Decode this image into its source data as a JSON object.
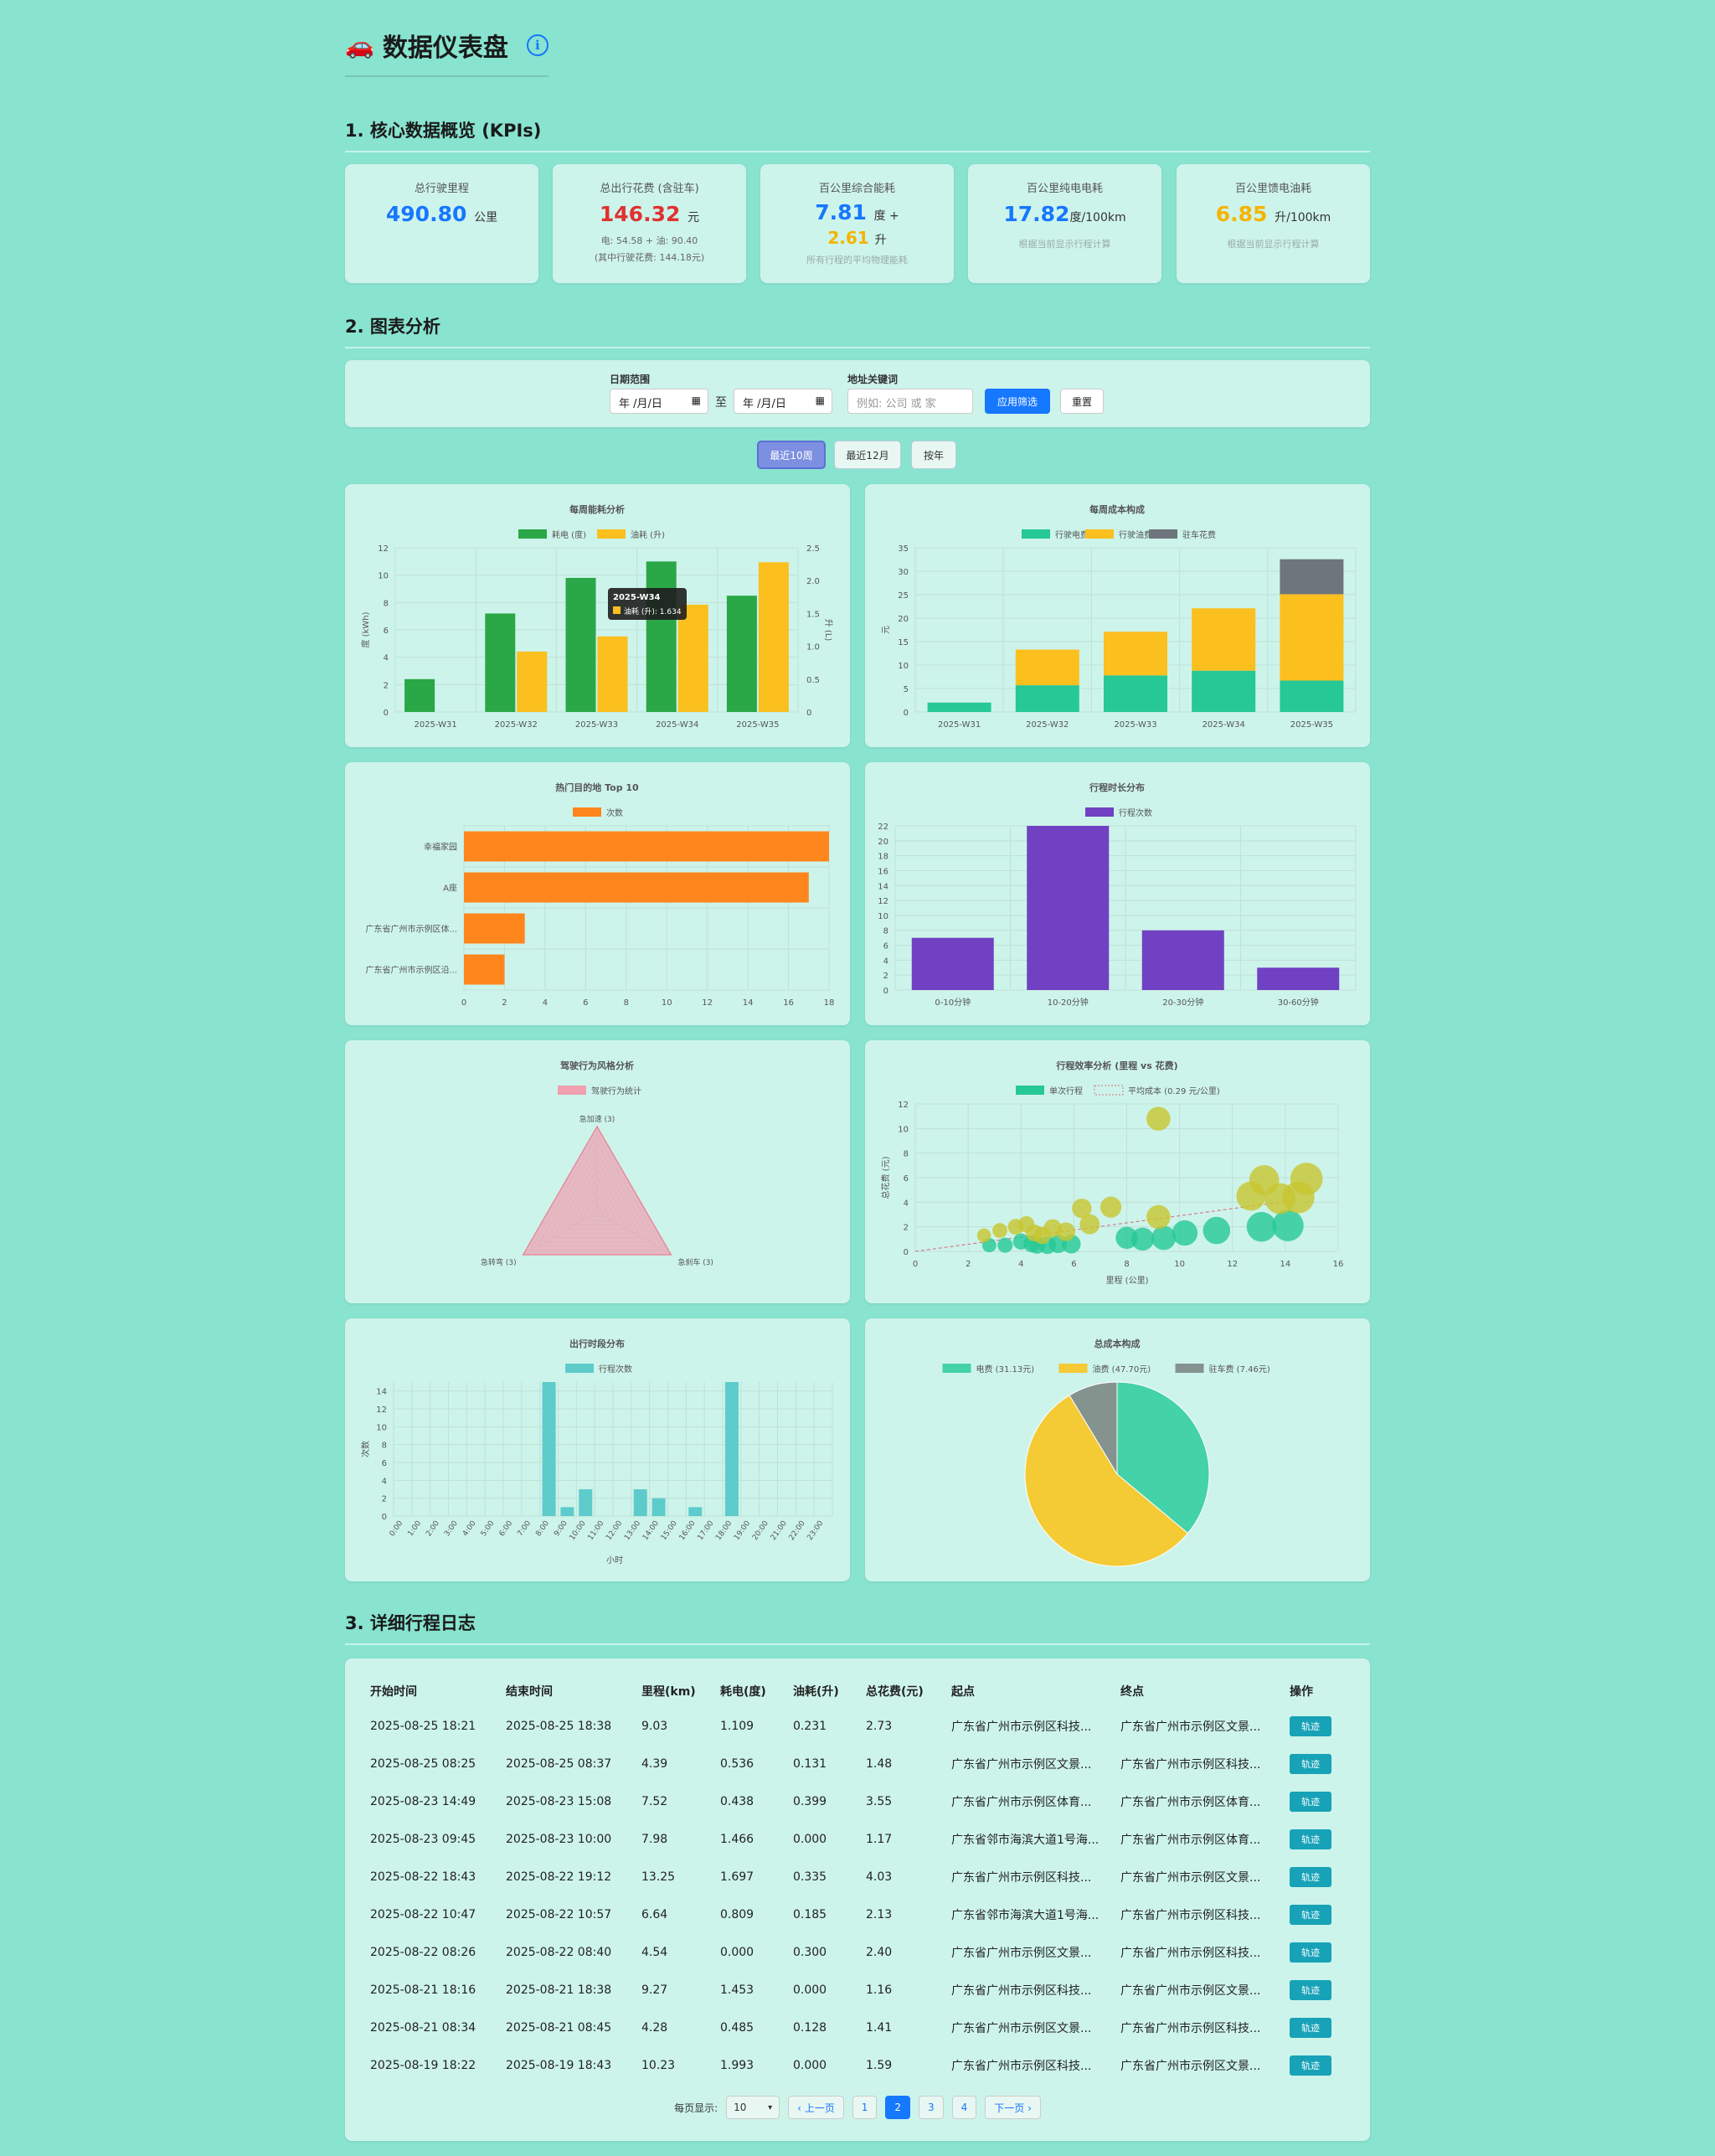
{
  "header": {
    "title": "数据仪表盘",
    "car_icon": "🚗",
    "info_glyph": "i"
  },
  "sections": {
    "kpi": "1. 核心数据概览 (KPIs)",
    "charts": "2. 图表分析",
    "log": "3. 详细行程日志"
  },
  "kpis": [
    {
      "label": "总行驶里程",
      "value": "490.80",
      "unit": "公里",
      "color": "#1677ff"
    },
    {
      "label": "总出行花费 (含驻车)",
      "value": "146.32",
      "unit": "元",
      "sub1": "电: 54.58 + 油: 90.40",
      "sub2": "(其中行驶花费: 144.18元)",
      "color": "#e03131"
    },
    {
      "label": "百公里综合能耗",
      "value": "7.81",
      "unit": "度 +",
      "value2": "2.61",
      "unit2": "升",
      "note": "所有行程的平均物理能耗",
      "color": "#1677ff"
    },
    {
      "label": "百公里纯电电耗",
      "value": "17.82",
      "unit": "度/100km",
      "note": "根据当前显示行程计算",
      "color": "#1677ff"
    },
    {
      "label": "百公里馈电油耗",
      "value": "6.85",
      "unit": "升/100km",
      "note": "根据当前显示行程计算",
      "color": "#f5b400"
    }
  ],
  "filter": {
    "date_label": "日期范围",
    "date_placeholder": "年 /月/日",
    "to": "至",
    "kw_label": "地址关键词",
    "kw_placeholder": "例如: 公司 或 家",
    "apply": "应用筛选",
    "reset": "重置"
  },
  "ranges": [
    "最近10周",
    "最近12月",
    "按年"
  ],
  "charts": {
    "weekly_energy": {
      "title": "每周能耗分析",
      "legend": [
        "耗电 (度)",
        "油耗 (升)"
      ],
      "categories": [
        "2025-W31",
        "2025-W32",
        "2025-W33",
        "2025-W34",
        "2025-W35"
      ],
      "electric": [
        2.4,
        7.2,
        9.8,
        11.0,
        8.5
      ],
      "fuel": [
        0,
        0.92,
        1.15,
        1.634,
        2.28
      ],
      "ylabel_left": "度 (kWh)",
      "ylabel_right": "升 (L)",
      "left_ticks": [
        "0",
        "2",
        "4",
        "6",
        "8",
        "10",
        "12"
      ],
      "right_ticks": [
        "0",
        "0.5",
        "1.0",
        "1.5",
        "2.0",
        "2.5"
      ],
      "tooltip_title": "2025-W34",
      "tooltip_text": "油耗 (升): 1.634",
      "colors": [
        "#2aa746",
        "#fbbf1e"
      ]
    },
    "weekly_cost": {
      "title": "每周成本构成",
      "legend": [
        "行驶电费",
        "行驶油费",
        "驻车花费"
      ],
      "categories": [
        "2025-W31",
        "2025-W32",
        "2025-W33",
        "2025-W34",
        "2025-W35"
      ],
      "electric": [
        2,
        5.7,
        7.8,
        8.8,
        6.7
      ],
      "fuel": [
        0,
        7.6,
        9.3,
        13.3,
        18.4
      ],
      "parking": [
        0,
        0,
        0,
        0,
        7.46
      ],
      "ylabel": "元",
      "ticks": [
        "0",
        "5",
        "10",
        "15",
        "20",
        "25",
        "30",
        "35"
      ],
      "colors": [
        "#26c896",
        "#fbbf1e",
        "#6e757c"
      ]
    },
    "top_dest": {
      "title": "热门目的地 Top 10",
      "legend": [
        "次数"
      ],
      "categories": [
        "幸福家园",
        "A座",
        "广东省广州市示例区体...",
        "广东省广州市示例区沿..."
      ],
      "values": [
        18,
        17,
        3,
        2
      ],
      "ticks": [
        "0",
        "2",
        "4",
        "6",
        "8",
        "10",
        "12",
        "14",
        "16",
        "18"
      ],
      "color": "#ff861c"
    },
    "duration": {
      "title": "行程时长分布",
      "legend": [
        "行程次数"
      ],
      "categories": [
        "0-10分钟",
        "10-20分钟",
        "20-30分钟",
        "30-60分钟"
      ],
      "values": [
        7,
        22,
        8,
        3
      ],
      "ticks": [
        "0",
        "2",
        "4",
        "6",
        "8",
        "10",
        "12",
        "14",
        "16",
        "18",
        "20",
        "22"
      ],
      "color": "#7041c2"
    },
    "radar": {
      "title": "驾驶行为风格分析",
      "legend": [
        "驾驶行为统计"
      ],
      "axes": [
        "急加速 (3)",
        "急刹车 (3)",
        "急转弯 (3)"
      ],
      "values": [
        3,
        3,
        3
      ],
      "color": "#f0a0b0"
    },
    "scatter": {
      "title": "行程效率分析 (里程 vs 花费)",
      "legend": [
        "单次行程",
        "平均成本 (0.29 元/公里)"
      ],
      "xlabel": "里程 (公里)",
      "ylabel": "总花费 (元)",
      "xticks": [
        "0",
        "2",
        "4",
        "6",
        "8",
        "10",
        "12",
        "14",
        "16"
      ],
      "yticks": [
        "0",
        "2",
        "4",
        "6",
        "8",
        "10",
        "12"
      ],
      "points": [
        [
          2.8,
          0.5
        ],
        [
          3.4,
          0.5
        ],
        [
          4.0,
          0.8
        ],
        [
          4.4,
          0.6
        ],
        [
          4.6,
          0.5
        ],
        [
          5.0,
          0.5
        ],
        [
          5.4,
          0.6
        ],
        [
          5.9,
          0.6
        ],
        [
          8.0,
          1.1
        ],
        [
          8.6,
          1.0
        ],
        [
          9.4,
          1.1
        ],
        [
          10.2,
          1.5
        ],
        [
          11.4,
          1.7
        ],
        [
          13.1,
          2.0
        ],
        [
          14.1,
          2.1
        ],
        [
          2.6,
          1.3
        ],
        [
          3.2,
          1.7
        ],
        [
          3.8,
          2.0
        ],
        [
          4.5,
          1.5
        ],
        [
          4.2,
          2.2
        ],
        [
          4.8,
          1.3
        ],
        [
          5.2,
          1.9
        ],
        [
          5.7,
          1.6
        ],
        [
          6.6,
          2.2
        ],
        [
          7.4,
          3.6
        ],
        [
          6.3,
          3.5
        ],
        [
          9.2,
          2.8
        ],
        [
          9.2,
          10.8
        ],
        [
          12.7,
          4.5
        ],
        [
          13.2,
          5.8
        ],
        [
          13.8,
          4.3
        ],
        [
          14.5,
          4.4
        ],
        [
          14.8,
          5.9
        ]
      ],
      "colors": [
        "#26c896",
        "#c8c530"
      ]
    },
    "hourly": {
      "title": "出行时段分布",
      "legend": [
        "行程次数"
      ],
      "xlabel": "小时",
      "ylabel": "次数",
      "hours": [
        "0:00",
        "1:00",
        "2:00",
        "3:00",
        "4:00",
        "5:00",
        "6:00",
        "7:00",
        "8:00",
        "9:00",
        "10:00",
        "11:00",
        "12:00",
        "13:00",
        "14:00",
        "15:00",
        "16:00",
        "17:00",
        "18:00",
        "19:00",
        "20:00",
        "21:00",
        "22:00",
        "23:00"
      ],
      "values": [
        0,
        0,
        0,
        0,
        0,
        0,
        0,
        0,
        15,
        1,
        3,
        0,
        0,
        3,
        2,
        0,
        1,
        0,
        15,
        0,
        0,
        0,
        0,
        0
      ],
      "ticks": [
        "0",
        "2",
        "4",
        "6",
        "8",
        "10",
        "12",
        "14"
      ],
      "color": "#5ecbcb"
    },
    "total_cost": {
      "title": "总成本构成",
      "legend": [
        "电费 (31.13元)",
        "油费 (47.70元)",
        "驻车费 (7.46元)"
      ],
      "values": [
        31.13,
        47.7,
        7.46
      ],
      "colors": [
        "#44d2a8",
        "#f4ca35",
        "#85938f"
      ]
    }
  },
  "table": {
    "headers": [
      "开始时间",
      "结束时间",
      "里程(km)",
      "耗电(度)",
      "油耗(升)",
      "总花费(元)",
      "起点",
      "终点",
      "操作"
    ],
    "rows": [
      [
        "2025-08-25 18:21",
        "2025-08-25 18:38",
        "9.03",
        "1.109",
        "0.231",
        "2.73",
        "广东省广州市示例区科技...",
        "广东省广州市示例区文景...",
        "轨迹"
      ],
      [
        "2025-08-25 08:25",
        "2025-08-25 08:37",
        "4.39",
        "0.536",
        "0.131",
        "1.48",
        "广东省广州市示例区文景...",
        "广东省广州市示例区科技...",
        "轨迹"
      ],
      [
        "2025-08-23 14:49",
        "2025-08-23 15:08",
        "7.52",
        "0.438",
        "0.399",
        "3.55",
        "广东省广州市示例区体育...",
        "广东省广州市示例区体育...",
        "轨迹"
      ],
      [
        "2025-08-23 09:45",
        "2025-08-23 10:00",
        "7.98",
        "1.466",
        "0.000",
        "1.17",
        "广东省邻市海滨大道1号海...",
        "广东省广州市示例区体育...",
        "轨迹"
      ],
      [
        "2025-08-22 18:43",
        "2025-08-22 19:12",
        "13.25",
        "1.697",
        "0.335",
        "4.03",
        "广东省广州市示例区科技...",
        "广东省广州市示例区文景...",
        "轨迹"
      ],
      [
        "2025-08-22 10:47",
        "2025-08-22 10:57",
        "6.64",
        "0.809",
        "0.185",
        "2.13",
        "广东省邻市海滨大道1号海...",
        "广东省广州市示例区科技...",
        "轨迹"
      ],
      [
        "2025-08-22 08:26",
        "2025-08-22 08:40",
        "4.54",
        "0.000",
        "0.300",
        "2.40",
        "广东省广州市示例区文景...",
        "广东省广州市示例区科技...",
        "轨迹"
      ],
      [
        "2025-08-21 18:16",
        "2025-08-21 18:38",
        "9.27",
        "1.453",
        "0.000",
        "1.16",
        "广东省广州市示例区科技...",
        "广东省广州市示例区文景...",
        "轨迹"
      ],
      [
        "2025-08-21 08:34",
        "2025-08-21 08:45",
        "4.28",
        "0.485",
        "0.128",
        "1.41",
        "广东省广州市示例区文景...",
        "广东省广州市示例区科技...",
        "轨迹"
      ],
      [
        "2025-08-19 18:22",
        "2025-08-19 18:43",
        "10.23",
        "1.993",
        "0.000",
        "1.59",
        "广东省广州市示例区科技...",
        "广东省广州市示例区文景...",
        "轨迹"
      ]
    ]
  },
  "pager": {
    "label": "每页显示:",
    "size": "10",
    "prev": "‹ 上一页",
    "next": "下一页 ›",
    "pages": [
      "1",
      "2",
      "3",
      "4"
    ],
    "current": "2"
  }
}
